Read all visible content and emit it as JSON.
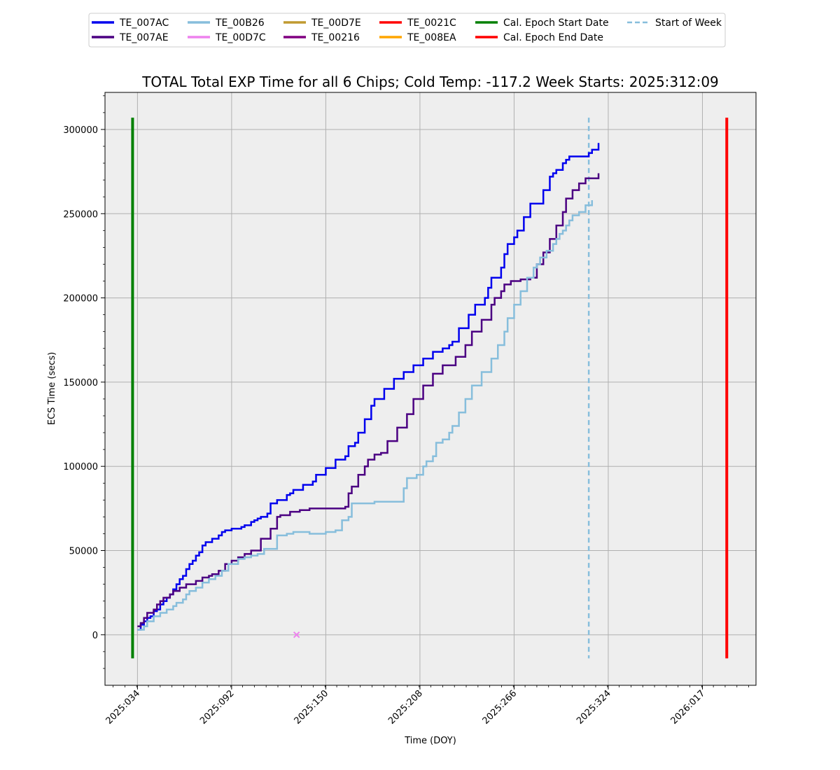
{
  "chart_data": {
    "type": "line",
    "title": "TOTAL Total EXP Time for all 6 Chips; Cold Temp: -117.2 Week Starts: 2025:312:09",
    "xlabel": "Time (DOY)",
    "ylabel": "ECS Time (secs)",
    "xlim": [
      "2025:014",
      "2026:050"
    ],
    "ylim": [
      -30000,
      322000
    ],
    "x_ticks": [
      "2025:034",
      "2025:092",
      "2025:150",
      "2025:208",
      "2025:266",
      "2025:324",
      "2026:017"
    ],
    "y_ticks": [
      0,
      50000,
      100000,
      150000,
      200000,
      250000,
      300000
    ],
    "y_tick_labels": [
      "0",
      "50000",
      "100000",
      "150000",
      "200000",
      "250000",
      "300000"
    ],
    "grid": true,
    "legend_position": "top-outside",
    "plot_background": "#eeeeee",
    "legend_entries": [
      {
        "name": "TE_007AC",
        "color": "#0000ee",
        "style": "solid"
      },
      {
        "name": "TE_007AE",
        "color": "#4b0082",
        "style": "solid"
      },
      {
        "name": "TE_00B26",
        "color": "#87bedc",
        "style": "solid"
      },
      {
        "name": "TE_00D7C",
        "color": "#ee82ee",
        "style": "solid"
      },
      {
        "name": "TE_00D7E",
        "color": "#c09a30",
        "style": "solid"
      },
      {
        "name": "TE_00216",
        "color": "#800080",
        "style": "solid"
      },
      {
        "name": "TE_0021C",
        "color": "#ff0000",
        "style": "solid"
      },
      {
        "name": "TE_008EA",
        "color": "#ffa500",
        "style": "solid"
      },
      {
        "name": "Cal. Epoch Start Date",
        "color": "#008000",
        "style": "solid"
      },
      {
        "name": "Cal. Epoch End Date",
        "color": "#ff0000",
        "style": "solid"
      },
      {
        "name": "Start of Week",
        "color": "#87bedc",
        "style": "dashed"
      }
    ],
    "series": [
      {
        "name": "TE_007AC",
        "color": "#0000ee",
        "x": [
          34,
          36,
          38,
          40,
          42,
          44,
          46,
          48,
          50,
          52,
          54,
          56,
          58,
          60,
          62,
          64,
          66,
          68,
          70,
          72,
          74,
          76,
          80,
          84,
          86,
          88,
          92,
          98,
          100,
          104,
          106,
          108,
          110,
          114,
          116,
          120,
          126,
          128,
          130,
          136,
          142,
          144,
          150,
          156,
          162,
          164,
          168,
          170,
          174,
          178,
          180,
          186,
          192,
          198,
          204,
          210,
          216,
          222,
          226,
          228,
          232,
          238,
          242,
          248,
          250,
          252,
          258,
          260,
          262,
          266,
          268,
          272,
          276,
          284,
          288,
          290,
          292,
          296,
          298,
          300,
          312,
          314,
          318
        ],
        "y": [
          3000,
          6000,
          8000,
          10000,
          11000,
          14000,
          15000,
          18000,
          20000,
          22000,
          24000,
          27000,
          30000,
          33000,
          35000,
          39000,
          42000,
          44000,
          47000,
          49000,
          53000,
          55000,
          57000,
          59000,
          61000,
          62000,
          63000,
          64000,
          65000,
          67000,
          68000,
          69000,
          70000,
          72000,
          78000,
          80000,
          83000,
          84000,
          86000,
          89000,
          91000,
          95000,
          99000,
          104000,
          106000,
          112000,
          114000,
          120000,
          128000,
          136000,
          140000,
          146000,
          152000,
          156000,
          160000,
          164000,
          168000,
          170000,
          172000,
          174000,
          182000,
          190000,
          196000,
          200000,
          206000,
          212000,
          218000,
          226000,
          232000,
          236000,
          240000,
          248000,
          256000,
          264000,
          272000,
          274000,
          276000,
          280000,
          282000,
          284000,
          286000,
          288000,
          292000
        ]
      },
      {
        "name": "TE_007AE",
        "color": "#4b0082",
        "x": [
          34,
          36,
          38,
          40,
          44,
          46,
          48,
          50,
          54,
          56,
          60,
          64,
          70,
          74,
          78,
          80,
          84,
          88,
          92,
          96,
          100,
          104,
          110,
          116,
          120,
          122,
          128,
          134,
          140,
          150,
          156,
          162,
          164,
          166,
          170,
          174,
          176,
          180,
          184,
          188,
          194,
          200,
          204,
          210,
          216,
          218,
          222,
          230,
          236,
          240,
          246,
          252,
          254,
          258,
          260,
          264,
          270,
          276,
          280,
          284,
          288,
          292,
          296,
          298,
          302,
          306,
          310,
          318
        ],
        "y": [
          5000,
          7000,
          10000,
          13000,
          15000,
          18000,
          20000,
          22000,
          24000,
          26000,
          28000,
          30000,
          32000,
          34000,
          35000,
          36000,
          38000,
          42000,
          44000,
          46000,
          48000,
          50000,
          57000,
          63000,
          70000,
          71000,
          73000,
          74000,
          75000,
          75000,
          75000,
          76000,
          84000,
          88000,
          95000,
          100000,
          104000,
          107000,
          108000,
          115000,
          123000,
          131000,
          140000,
          148000,
          155000,
          155000,
          160000,
          165000,
          172000,
          180000,
          187000,
          196000,
          200000,
          204000,
          208000,
          210000,
          211000,
          212000,
          220000,
          227000,
          235000,
          243000,
          251000,
          259000,
          264000,
          268000,
          271000,
          274000
        ]
      },
      {
        "name": "TE_00B26",
        "color": "#87bedc",
        "x": [
          34,
          38,
          40,
          44,
          48,
          52,
          56,
          58,
          62,
          64,
          66,
          70,
          74,
          78,
          82,
          86,
          90,
          96,
          100,
          104,
          108,
          112,
          120,
          126,
          130,
          134,
          140,
          146,
          150,
          156,
          160,
          164,
          166,
          172,
          180,
          184,
          188,
          198,
          200,
          206,
          210,
          212,
          216,
          218,
          222,
          226,
          228,
          232,
          236,
          240,
          246,
          252,
          256,
          260,
          262,
          266,
          270,
          274,
          278,
          280,
          282,
          286,
          290,
          292,
          294,
          296,
          298,
          300,
          302,
          306,
          310,
          314
        ],
        "y": [
          3000,
          5000,
          8000,
          11000,
          13000,
          15000,
          17000,
          19000,
          21000,
          24000,
          26000,
          28000,
          31000,
          33000,
          35000,
          38000,
          42000,
          45000,
          46000,
          47000,
          48000,
          51000,
          59000,
          60000,
          61000,
          61000,
          60000,
          60000,
          61000,
          62000,
          68000,
          70000,
          78000,
          78000,
          79000,
          79000,
          79000,
          87000,
          93000,
          95000,
          100000,
          103000,
          106000,
          114000,
          116000,
          120000,
          124000,
          132000,
          140000,
          148000,
          156000,
          164000,
          172000,
          180000,
          188000,
          196000,
          204000,
          212000,
          218000,
          220000,
          224000,
          228000,
          232000,
          235000,
          238000,
          240000,
          243000,
          246000,
          249000,
          251000,
          255000,
          258000
        ]
      },
      {
        "name": "TE_00D7C",
        "color": "#ee82ee",
        "marker": "x",
        "x": [
          132
        ],
        "y": [
          0
        ]
      }
    ],
    "reference_lines": [
      {
        "name": "Cal. Epoch Start Date",
        "x": "2025:031",
        "color": "#008000",
        "style": "solid"
      },
      {
        "name": "Start of Week",
        "x": "2025:312",
        "color": "#87bedc",
        "style": "dashed"
      },
      {
        "name": "Cal. Epoch End Date",
        "x": "2026:032",
        "color": "#ff0000",
        "style": "solid"
      }
    ]
  }
}
